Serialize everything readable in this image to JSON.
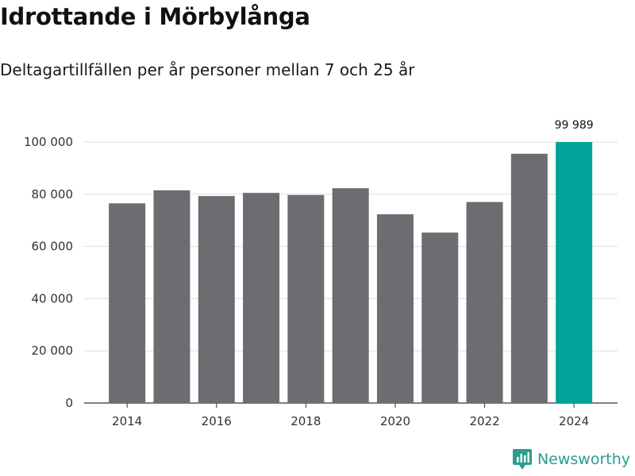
{
  "header": {
    "title": "Idrottande i Mörbylånga",
    "subtitle": "Deltagartillfällen per år personer mellan 7 och 25 år"
  },
  "brand": {
    "name": "Newsworthy",
    "color": "#2a9d8f"
  },
  "colors": {
    "bar": "#6d6c71",
    "highlight": "#00a398",
    "grid": "#dddddd",
    "axis": "#333333"
  },
  "chart_data": {
    "type": "bar",
    "title": "Idrottande i Mörbylånga",
    "subtitle": "Deltagartillfällen per år personer mellan 7 och 25 år",
    "xlabel": "",
    "ylabel": "",
    "ylim": [
      0,
      100000
    ],
    "yticks": [
      0,
      20000,
      40000,
      60000,
      80000,
      100000
    ],
    "ytick_labels": [
      "0",
      "20 000",
      "40 000",
      "60 000",
      "80 000",
      "100 000"
    ],
    "categories": [
      2014,
      2015,
      2016,
      2017,
      2018,
      2019,
      2020,
      2021,
      2022,
      2023,
      2024
    ],
    "values": [
      76500,
      81500,
      79300,
      80500,
      79700,
      82300,
      72300,
      65300,
      77000,
      95500,
      99989
    ],
    "xtick_labels": [
      "2014",
      "2016",
      "2018",
      "2020",
      "2022",
      "2024"
    ],
    "highlight_index": 10,
    "highlight_label": "99 989",
    "grid": true
  }
}
